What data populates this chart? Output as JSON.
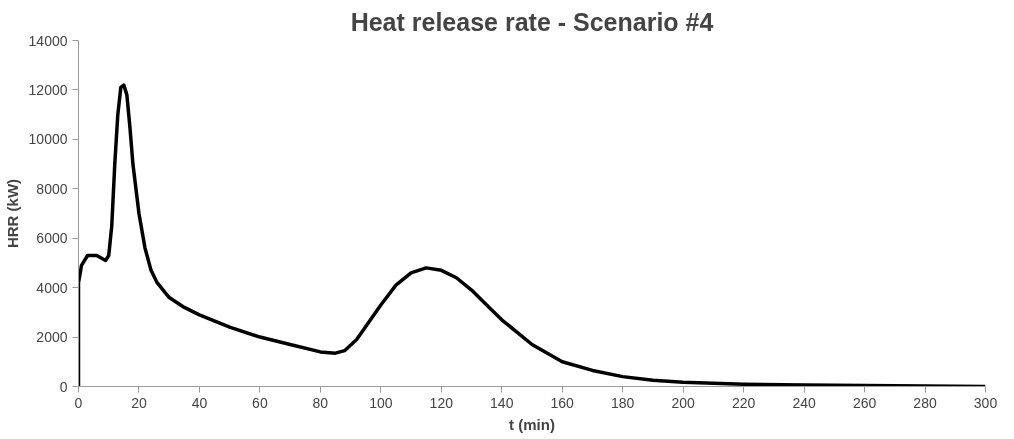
{
  "chart_data": {
    "type": "line",
    "title": "Heat release rate - Scenario #4",
    "xlabel": "t (min)",
    "ylabel": "HRR (kW)",
    "x": [
      0,
      0,
      1,
      3,
      6,
      9,
      10,
      11,
      12,
      13,
      14,
      15,
      16,
      17,
      18,
      20,
      22,
      24,
      26,
      30,
      35,
      40,
      50,
      60,
      70,
      80,
      85,
      88,
      92,
      96,
      100,
      105,
      110,
      115,
      120,
      125,
      130,
      135,
      140,
      145,
      150,
      160,
      170,
      180,
      190,
      200,
      220,
      240,
      260,
      280,
      300
    ],
    "series": [
      {
        "color": "#000000",
        "values": [
          0,
          4200,
          4900,
          5300,
          5300,
          5100,
          5300,
          6500,
          9000,
          11000,
          12100,
          12200,
          11800,
          10500,
          9000,
          7000,
          5600,
          4700,
          4200,
          3600,
          3200,
          2900,
          2400,
          2000,
          1700,
          1400,
          1350,
          1450,
          1900,
          2600,
          3300,
          4100,
          4600,
          4800,
          4700,
          4400,
          3900,
          3300,
          2700,
          2200,
          1700,
          1000,
          650,
          400,
          250,
          170,
          90,
          60,
          40,
          20,
          0
        ]
      }
    ],
    "xlim": [
      0,
      300
    ],
    "xticks": [
      0,
      20,
      40,
      60,
      80,
      100,
      120,
      140,
      160,
      180,
      200,
      220,
      240,
      260,
      280,
      300
    ],
    "ylim": [
      0,
      14000
    ],
    "yticks": [
      0,
      2000,
      4000,
      6000,
      8000,
      10000,
      12000,
      14000
    ],
    "line_style": "solid"
  }
}
